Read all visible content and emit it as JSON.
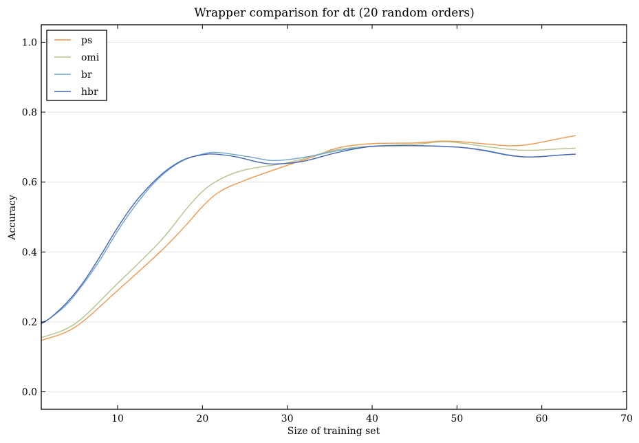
{
  "chart_data": {
    "type": "line",
    "title": "Wrapper comparison for dt (20 random orders)",
    "xlabel": "Size of training set",
    "ylabel": "Accuracy",
    "xlim": [
      1,
      70
    ],
    "ylim": [
      -0.05,
      1.05
    ],
    "xticks": [
      10,
      20,
      30,
      40,
      50,
      60,
      70
    ],
    "yticks": [
      0.0,
      0.2,
      0.4,
      0.6,
      0.8,
      1.0
    ],
    "ytick_labels": [
      "0.0",
      "0.2",
      "0.4",
      "0.6",
      "0.8",
      "1.0"
    ],
    "grid": "horizontal",
    "legend": "top-left",
    "series": [
      {
        "name": "ps",
        "color": "#f0954a",
        "x": [
          1,
          5,
          10,
          15,
          18,
          20,
          22,
          25,
          30,
          33,
          36,
          40,
          45,
          48,
          50,
          53,
          56,
          58,
          60,
          62,
          64
        ],
        "y": [
          0.147,
          0.185,
          0.29,
          0.4,
          0.475,
          0.53,
          0.572,
          0.605,
          0.648,
          0.672,
          0.698,
          0.71,
          0.712,
          0.717,
          0.716,
          0.71,
          0.704,
          0.706,
          0.714,
          0.724,
          0.733
        ]
      },
      {
        "name": "omi",
        "color": "#b3c28a",
        "x": [
          1,
          5,
          10,
          15,
          18,
          20,
          22,
          25,
          30,
          33,
          36,
          40,
          45,
          48,
          50,
          53,
          56,
          58,
          60,
          62,
          64
        ],
        "y": [
          0.155,
          0.195,
          0.31,
          0.43,
          0.52,
          0.573,
          0.607,
          0.635,
          0.655,
          0.675,
          0.693,
          0.703,
          0.708,
          0.715,
          0.713,
          0.703,
          0.694,
          0.691,
          0.692,
          0.695,
          0.697
        ]
      },
      {
        "name": "br",
        "color": "#6aa3d5",
        "x": [
          1,
          2,
          4,
          6,
          8,
          10,
          12,
          14,
          16,
          18,
          20,
          21.5,
          24,
          26,
          28,
          30,
          33,
          36,
          40,
          45,
          50,
          53,
          56,
          58,
          60,
          62,
          64
        ],
        "y": [
          0.197,
          0.21,
          0.25,
          0.31,
          0.38,
          0.46,
          0.53,
          0.59,
          0.635,
          0.665,
          0.68,
          0.685,
          0.678,
          0.67,
          0.662,
          0.664,
          0.675,
          0.69,
          0.702,
          0.704,
          0.7,
          0.692,
          0.678,
          0.672,
          0.673,
          0.677,
          0.68
        ]
      },
      {
        "name": "hbr",
        "color": "#4563b5",
        "x": [
          1,
          2,
          4,
          6,
          8,
          10,
          12,
          14,
          16,
          18,
          20,
          21.5,
          24,
          27,
          29,
          32,
          36,
          40,
          45,
          50,
          53,
          56,
          58,
          60,
          62,
          64
        ],
        "y": [
          0.195,
          0.21,
          0.255,
          0.315,
          0.39,
          0.47,
          0.54,
          0.595,
          0.638,
          0.666,
          0.678,
          0.68,
          0.672,
          0.655,
          0.652,
          0.66,
          0.685,
          0.702,
          0.704,
          0.7,
          0.691,
          0.677,
          0.672,
          0.673,
          0.677,
          0.68
        ]
      }
    ]
  }
}
